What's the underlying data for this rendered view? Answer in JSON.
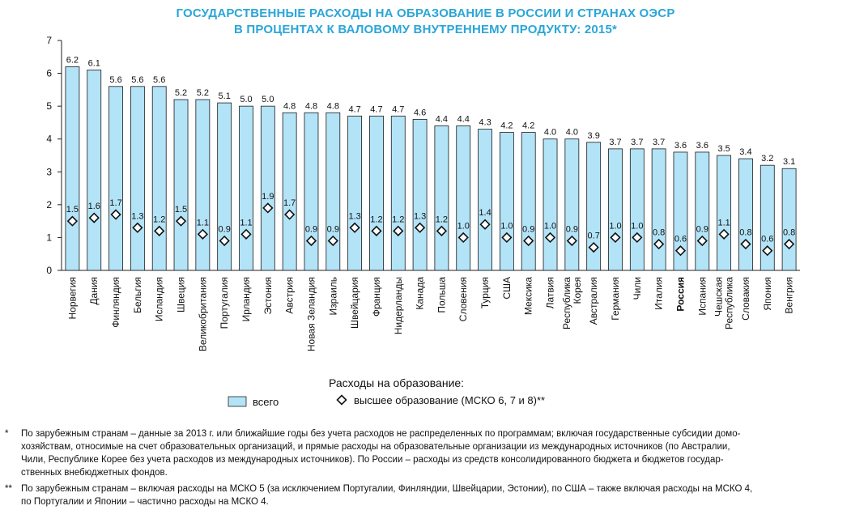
{
  "title_line1": "ГОСУДАРСТВЕННЫЕ РАСХОДЫ НА ОБРАЗОВАНИЕ В РОССИИ И СТРАНАХ ОЭСР",
  "title_line2": "В ПРОЦЕНТАХ К ВАЛОВОМУ ВНУТРЕННЕМУ ПРОДУКТУ: 2015*",
  "legend": {
    "heading": "Расходы  на образование:",
    "total_label": "всего",
    "higher_label": "высшее образование (МСКО 6, 7 и 8)**"
  },
  "colors": {
    "bar": "#b3e3f7",
    "bar_stroke": "#1a1a1a",
    "title": "#2aa6d8"
  },
  "chart_data": {
    "type": "bar",
    "categories": [
      "Норвегия",
      "Дания",
      "Финляндия",
      "Бельгия",
      "Исландия",
      "Швеция",
      "Великобритания",
      "Португалия",
      "Ирландия",
      "Эстония",
      "Австрия",
      "Новая Зеландия",
      "Израиль",
      "Швейцария",
      "Франция",
      "Нидерланды",
      "Канада",
      "Польша",
      "Словения",
      "Турция",
      "США",
      "Мексика",
      "Латвия",
      "Республика Корея",
      "Австралия",
      "Германия",
      "Чили",
      "Италия",
      "Россия",
      "Испания",
      "Чешская Республика",
      "Словакия",
      "Япония",
      "Венгрия"
    ],
    "category_lines": [
      [
        "Норвегия"
      ],
      [
        "Дания"
      ],
      [
        "Финляндия"
      ],
      [
        "Бельгия"
      ],
      [
        "Исландия"
      ],
      [
        "Швеция"
      ],
      [
        "Великобритания"
      ],
      [
        "Португалия"
      ],
      [
        "Ирландия"
      ],
      [
        "Эстония"
      ],
      [
        "Австрия"
      ],
      [
        "Новая Зеландия"
      ],
      [
        "Израиль"
      ],
      [
        "Швейцария"
      ],
      [
        "Франция"
      ],
      [
        "Нидерланды"
      ],
      [
        "Канада"
      ],
      [
        "Польша"
      ],
      [
        "Словения"
      ],
      [
        "Турция"
      ],
      [
        "США"
      ],
      [
        "Мексика"
      ],
      [
        "Латвия"
      ],
      [
        "Республика",
        "Корея"
      ],
      [
        "Австралия"
      ],
      [
        "Германия"
      ],
      [
        "Чили"
      ],
      [
        "Италия"
      ],
      [
        "Россия"
      ],
      [
        "Испания"
      ],
      [
        "Чешская",
        "Республика"
      ],
      [
        "Словакия"
      ],
      [
        "Япония"
      ],
      [
        "Венгрия"
      ]
    ],
    "highlight_category": "Россия",
    "series": [
      {
        "name": "всего",
        "values": [
          6.2,
          6.1,
          5.6,
          5.6,
          5.6,
          5.2,
          5.2,
          5.1,
          5.0,
          5.0,
          4.8,
          4.8,
          4.8,
          4.7,
          4.7,
          4.7,
          4.6,
          4.4,
          4.4,
          4.3,
          4.2,
          4.2,
          4.0,
          4.0,
          3.9,
          3.7,
          3.7,
          3.7,
          3.6,
          3.6,
          3.5,
          3.4,
          3.2,
          3.1
        ]
      },
      {
        "name": "высшее образование (МСКО 6, 7 и 8)**",
        "values": [
          1.5,
          1.6,
          1.7,
          1.3,
          1.2,
          1.5,
          1.1,
          0.9,
          1.1,
          1.9,
          1.7,
          0.9,
          0.9,
          1.3,
          1.2,
          1.2,
          1.3,
          1.2,
          1.0,
          1.4,
          1.0,
          0.9,
          1.0,
          0.9,
          0.7,
          1.0,
          1.0,
          0.8,
          0.6,
          0.9,
          1.1,
          0.8,
          0.6,
          0.8
        ]
      }
    ],
    "yticks": [
      0,
      1,
      2,
      3,
      4,
      5,
      6,
      7
    ],
    "ylim": [
      0,
      7
    ],
    "grid": false,
    "legend_position": "bottom-center"
  },
  "footnotes": [
    {
      "mark": "*",
      "lines": [
        "По зарубежным странам – данные за 2013 г. или ближайшие годы без учета расходов не распределенных по программам; включая государственные субсидии домо-",
        "хозяйствам, относимые на счет образовательных организаций, и прямые расходы на образовательные организации из международных источников (по Австралии,",
        "Чили, Республике Корее без учета расходов из международных источников). По России – расходы из средств консолидированного бюджета и бюджетов государ-",
        "ственных внебюджетных фондов."
      ]
    },
    {
      "mark": "**",
      "lines": [
        "По зарубежным странам – включая расходы на МСКО 5 (за исключением Португалии, Финляндии, Швейцарии, Эстонии), по США – также включая расходы на МСКО 4,",
        "по Португалии и Японии – частично расходы на МСКО 4."
      ]
    }
  ]
}
